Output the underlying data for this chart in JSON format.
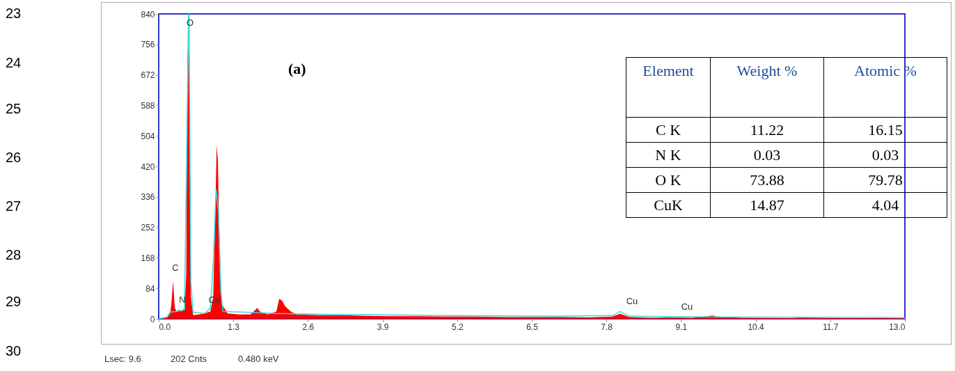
{
  "chart_data": {
    "type": "area",
    "xlim": [
      0,
      13.0
    ],
    "ylim": [
      0,
      840
    ],
    "xticks": [
      {
        "value": 0,
        "label": "0.0"
      },
      1.3,
      2.6,
      3.9,
      5.2,
      6.5,
      7.8,
      9.1,
      10.4,
      11.7,
      {
        "value": 13,
        "label": "13.0"
      }
    ],
    "yticks": [
      0,
      84,
      168,
      252,
      336,
      420,
      504,
      588,
      672,
      756,
      840
    ],
    "grid": false,
    "series": [
      {
        "color": "#ff0000",
        "x": [
          0,
          0.1,
          0.15,
          0.2,
          0.22,
          0.25,
          0.28,
          0.31,
          0.35,
          0.4,
          0.45,
          0.48,
          0.5,
          0.52,
          0.54,
          0.56,
          0.6,
          0.7,
          0.8,
          0.9,
          0.95,
          0.98,
          1.01,
          1.03,
          1.05,
          1.08,
          1.1,
          1.2,
          1.4,
          1.6,
          1.72,
          1.76,
          1.9,
          2.05,
          2.1,
          2.15,
          2.2,
          2.3,
          2.4,
          2.8,
          3.2,
          3.6,
          4.0,
          4.5,
          5.0,
          5.5,
          6.0,
          6.5,
          7.0,
          7.5,
          7.9,
          8.04,
          8.2,
          8.6,
          8.9,
          9.3,
          9.65,
          9.75,
          10.2,
          11.0,
          11.2,
          12.0,
          13.0
        ],
        "values": [
          0,
          2,
          6,
          15,
          40,
          104,
          30,
          20,
          25,
          20,
          30,
          120,
          700,
          830,
          500,
          60,
          10,
          12,
          15,
          20,
          60,
          250,
          478,
          440,
          280,
          120,
          40,
          15,
          12,
          12,
          30,
          20,
          12,
          20,
          55,
          50,
          35,
          20,
          12,
          10,
          10,
          8,
          7,
          7,
          6,
          6,
          5,
          5,
          5,
          4,
          6,
          14,
          5,
          3,
          4,
          3,
          9,
          5,
          3,
          2,
          4,
          2,
          2
        ]
      },
      {
        "type": "line",
        "color": "#33dddd",
        "x": [
          0,
          0.15,
          0.2,
          0.3,
          0.45,
          0.5,
          0.52,
          0.53,
          0.56,
          0.6,
          0.8,
          0.9,
          0.95,
          1.0,
          1.04,
          1.08,
          1.12,
          1.5,
          2.0,
          3.0,
          5.0,
          7.0,
          7.9,
          8.04,
          8.2,
          8.9,
          10.0,
          13.0
        ],
        "values": [
          0,
          5,
          18,
          20,
          25,
          600,
          840,
          840,
          100,
          18,
          15,
          30,
          150,
          356,
          300,
          80,
          20,
          18,
          15,
          12,
          9,
          7,
          9,
          20,
          7,
          6,
          5,
          3
        ]
      }
    ],
    "annotations": [
      "23",
      "24",
      "25",
      "26",
      "27",
      "28",
      "29",
      "30",
      "(a)",
      "Element",
      "Weight %",
      "Atomic %",
      "C K",
      "11.22",
      "16.15",
      "N K",
      "0.03",
      "0.03",
      "O K",
      "73.88",
      "79.78",
      "CuK",
      "14.87",
      "4.04",
      "Lsec: 9.6",
      "202 Cnts",
      "0.480 keV",
      "C",
      "N",
      "O",
      "Cu",
      "Cu",
      "Cu"
    ]
  }
}
